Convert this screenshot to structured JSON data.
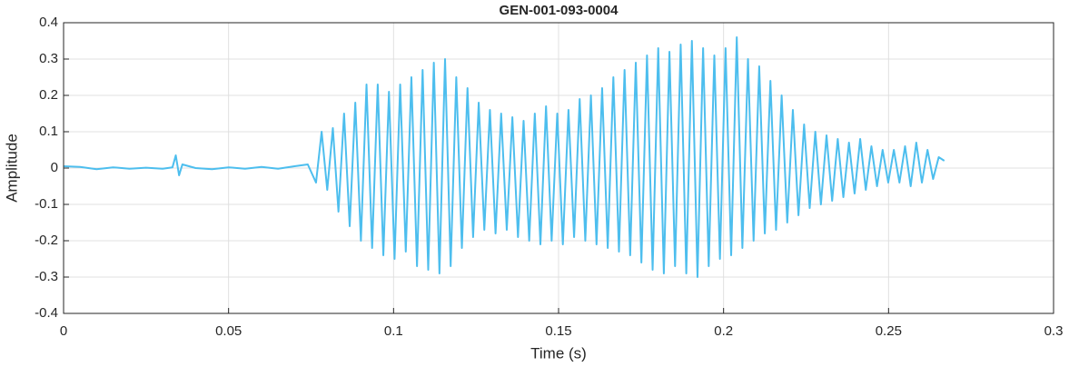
{
  "chart_data": {
    "type": "line",
    "title": "GEN-001-093-0004",
    "x_label": "Time (s)",
    "y_label": "Amplitude",
    "color": "#4DBEEE",
    "grid": true,
    "xlim": [
      0,
      0.3
    ],
    "ylim": [
      -0.4,
      0.4
    ],
    "xticks": [
      0,
      0.05,
      0.1,
      0.15,
      0.2,
      0.25,
      0.3
    ],
    "yticks": [
      -0.4,
      -0.3,
      -0.2,
      -0.1,
      0,
      0.1,
      0.2,
      0.3,
      0.4
    ],
    "x": [
      0,
      0.005,
      0.01,
      0.015,
      0.02,
      0.025,
      0.03,
      0.033,
      0.034,
      0.035,
      0.036,
      0.04,
      0.045,
      0.05,
      0.055,
      0.06,
      0.065,
      0.07,
      0.074,
      0.0765,
      0.0782,
      0.0799,
      0.0816,
      0.0833,
      0.085,
      0.0867,
      0.0884,
      0.0901,
      0.0918,
      0.0935,
      0.0952,
      0.0969,
      0.0986,
      0.1003,
      0.102,
      0.1037,
      0.1054,
      0.1071,
      0.1088,
      0.1105,
      0.1122,
      0.1139,
      0.1156,
      0.1173,
      0.119,
      0.1207,
      0.1224,
      0.1241,
      0.1258,
      0.1275,
      0.1292,
      0.1309,
      0.1326,
      0.1343,
      0.136,
      0.1377,
      0.1394,
      0.1411,
      0.1428,
      0.1445,
      0.1462,
      0.1479,
      0.1496,
      0.1513,
      0.153,
      0.1547,
      0.1564,
      0.1581,
      0.1598,
      0.1615,
      0.1632,
      0.1649,
      0.1666,
      0.1683,
      0.17,
      0.1717,
      0.1734,
      0.1751,
      0.1768,
      0.1785,
      0.1802,
      0.1819,
      0.1836,
      0.1853,
      0.187,
      0.1887,
      0.1904,
      0.1921,
      0.1938,
      0.1955,
      0.1972,
      0.1989,
      0.2006,
      0.2023,
      0.204,
      0.2057,
      0.2074,
      0.2091,
      0.2108,
      0.2125,
      0.2142,
      0.2159,
      0.2176,
      0.2193,
      0.221,
      0.2227,
      0.2244,
      0.2261,
      0.2278,
      0.2295,
      0.2312,
      0.2329,
      0.2346,
      0.2363,
      0.238,
      0.2397,
      0.2414,
      0.2431,
      0.2448,
      0.2465,
      0.2482,
      0.2499,
      0.2516,
      0.2533,
      0.255,
      0.2567,
      0.2584,
      0.2601,
      0.2618,
      0.2635,
      0.2652,
      0.2669
    ],
    "values": [
      0.005,
      0.003,
      -0.003,
      0.002,
      -0.002,
      0.001,
      -0.002,
      0.002,
      0.035,
      -0.02,
      0.01,
      0,
      -0.003,
      0.002,
      -0.002,
      0.003,
      -0.002,
      0.005,
      0.01,
      -0.04,
      0.1,
      -0.06,
      0.11,
      -0.12,
      0.15,
      -0.16,
      0.18,
      -0.2,
      0.23,
      -0.22,
      0.23,
      -0.24,
      0.21,
      -0.25,
      0.23,
      -0.23,
      0.25,
      -0.27,
      0.27,
      -0.28,
      0.29,
      -0.29,
      0.3,
      -0.27,
      0.25,
      -0.22,
      0.22,
      -0.19,
      0.18,
      -0.17,
      0.16,
      -0.18,
      0.15,
      -0.17,
      0.14,
      -0.19,
      0.13,
      -0.2,
      0.15,
      -0.21,
      0.17,
      -0.2,
      0.15,
      -0.21,
      0.16,
      -0.19,
      0.19,
      -0.2,
      0.2,
      -0.21,
      0.22,
      -0.22,
      0.25,
      -0.23,
      0.27,
      -0.24,
      0.29,
      -0.26,
      0.31,
      -0.28,
      0.33,
      -0.29,
      0.32,
      -0.27,
      0.34,
      -0.29,
      0.35,
      -0.3,
      0.33,
      -0.27,
      0.31,
      -0.25,
      0.33,
      -0.24,
      0.36,
      -0.22,
      0.3,
      -0.2,
      0.28,
      -0.18,
      0.24,
      -0.17,
      0.2,
      -0.15,
      0.16,
      -0.13,
      0.12,
      -0.11,
      0.1,
      -0.1,
      0.09,
      -0.09,
      0.08,
      -0.08,
      0.07,
      -0.07,
      0.08,
      -0.06,
      0.06,
      -0.05,
      0.05,
      -0.04,
      0.05,
      -0.04,
      0.06,
      -0.05,
      0.07,
      -0.04,
      0.05,
      -0.03,
      0.03,
      0.02
    ]
  }
}
